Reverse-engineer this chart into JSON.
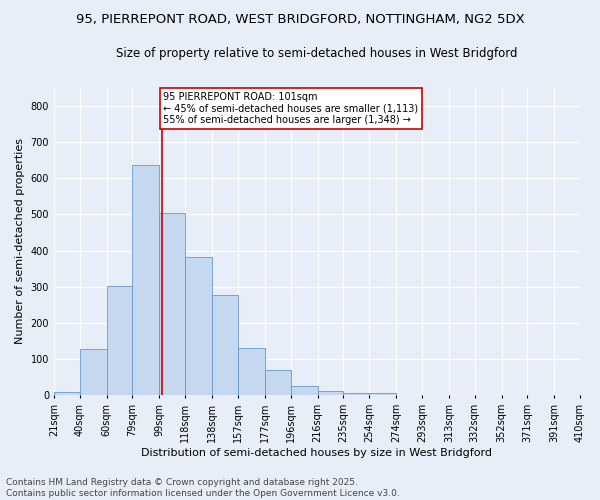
{
  "title1": "95, PIERREPONT ROAD, WEST BRIDGFORD, NOTTINGHAM, NG2 5DX",
  "title2": "Size of property relative to semi-detached houses in West Bridgford",
  "xlabel": "Distribution of semi-detached houses by size in West Bridgford",
  "ylabel": "Number of semi-detached properties",
  "footer1": "Contains HM Land Registry data © Crown copyright and database right 2025.",
  "footer2": "Contains public sector information licensed under the Open Government Licence v3.0.",
  "bin_labels": [
    "21sqm",
    "40sqm",
    "60sqm",
    "79sqm",
    "99sqm",
    "118sqm",
    "138sqm",
    "157sqm",
    "177sqm",
    "196sqm",
    "216sqm",
    "235sqm",
    "254sqm",
    "274sqm",
    "293sqm",
    "313sqm",
    "332sqm",
    "352sqm",
    "371sqm",
    "391sqm",
    "410sqm"
  ],
  "bin_edges": [
    21,
    40,
    60,
    79,
    99,
    118,
    138,
    157,
    177,
    196,
    216,
    235,
    254,
    274,
    293,
    313,
    332,
    352,
    371,
    391,
    410
  ],
  "bar_heights": [
    8,
    128,
    302,
    638,
    505,
    382,
    278,
    130,
    70,
    25,
    10,
    5,
    5,
    0,
    0,
    0,
    0,
    0,
    0,
    0
  ],
  "bar_color": "#c5d8f0",
  "bar_edge_color": "#6699cc",
  "property_size": 101,
  "vline_color": "#cc0000",
  "annotation_text": "95 PIERREPONT ROAD: 101sqm\n← 45% of semi-detached houses are smaller (1,113)\n55% of semi-detached houses are larger (1,348) →",
  "annotation_box_color": "#ffffff",
  "annotation_box_edge": "#cc0000",
  "ylim": [
    0,
    850
  ],
  "yticks": [
    0,
    100,
    200,
    300,
    400,
    500,
    600,
    700,
    800
  ],
  "bg_color": "#e8eef8",
  "grid_color": "#ffffff",
  "title1_fontsize": 9.5,
  "title2_fontsize": 8.5,
  "xlabel_fontsize": 8,
  "ylabel_fontsize": 8,
  "footer_fontsize": 6.5,
  "tick_fontsize": 7,
  "annot_fontsize": 7
}
